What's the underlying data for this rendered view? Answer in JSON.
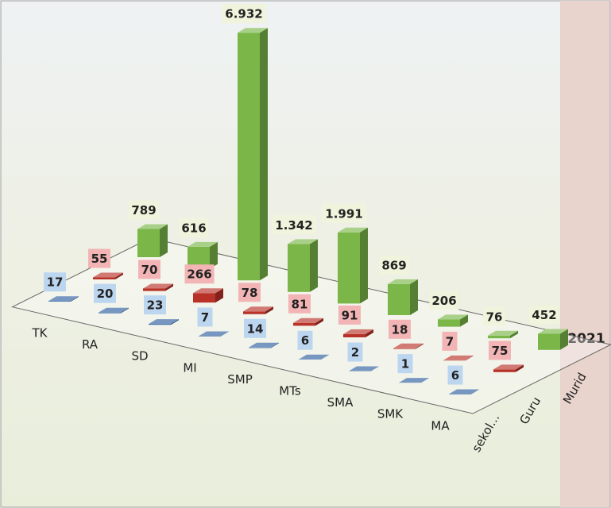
{
  "chart_data": {
    "type": "bar3d",
    "year": "2021",
    "categories": [
      "TK",
      "RA",
      "SD",
      "MI",
      "SMP",
      "MTs",
      "SMA",
      "SMK",
      "MA"
    ],
    "series": [
      {
        "name": "sekol...",
        "color": "#2e5fa0",
        "label_color": "#bcd6f0",
        "values": [
          17,
          20,
          23,
          7,
          14,
          6,
          2,
          1,
          6
        ]
      },
      {
        "name": "Guru",
        "color": "#b83228",
        "label_color": "#f2b4b4",
        "values": [
          55,
          70,
          266,
          78,
          81,
          91,
          18,
          7,
          75
        ]
      },
      {
        "name": "Murid",
        "color": "#7ab648",
        "label_color": "#f0f4dc",
        "values": [
          789,
          616,
          6932,
          1342,
          1991,
          869,
          206,
          76,
          452
        ],
        "value_labels": [
          "789",
          "616",
          "6.932",
          "1.342",
          "1.991",
          "869",
          "206",
          "76",
          "452"
        ]
      }
    ]
  }
}
